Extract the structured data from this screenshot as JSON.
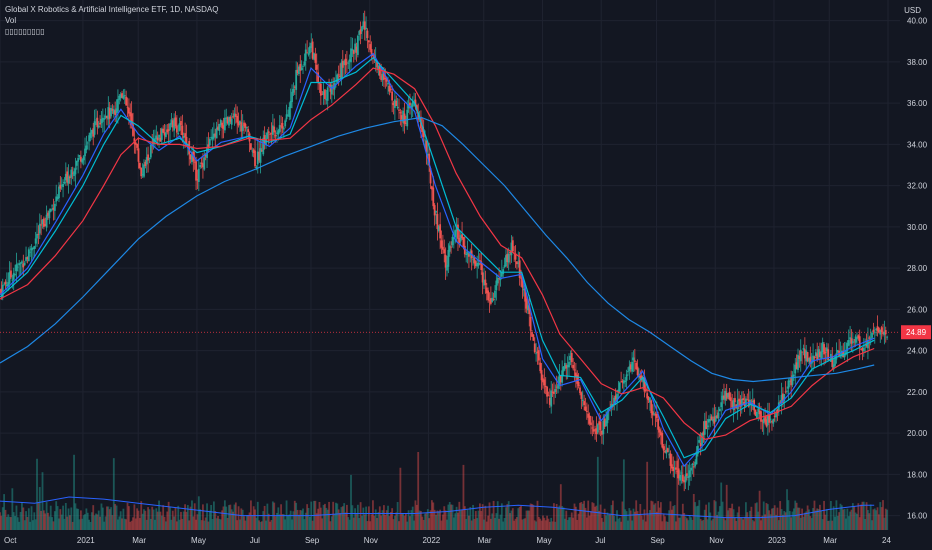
{
  "header": {
    "title": "Global X Robotics & Artificial Intelligence ETF, 1D, NASDAQ",
    "volume_label": "Vol",
    "indicator_placeholder": "▯▯▯▯▯▯▯▯▯"
  },
  "price_scale": {
    "currency": "USD"
  },
  "colors": {
    "background": "#131722",
    "grid": "#1f2330",
    "text": "#d1d4dc",
    "up": "#26a69a",
    "down": "#ef5350",
    "ma_fast": "#2962ff",
    "ma_mid": "#00bcd4",
    "ma_slow_red": "#f23645",
    "ma_long": "#1e88e5",
    "last_price": "#f23645"
  },
  "chart_data": {
    "type": "line",
    "title": "Global X Robotics & Artificial Intelligence ETF, 1D, NASDAQ",
    "xlabel": "",
    "ylabel": "",
    "ylim": [
      15.3,
      41.0
    ],
    "y_ticks": [
      16.0,
      18.0,
      20.0,
      22.0,
      24.0,
      26.0,
      28.0,
      30.0,
      32.0,
      34.0,
      36.0,
      38.0,
      40.0
    ],
    "x_range": [
      2020.76,
      2023.33
    ],
    "x_ticks": [
      {
        "t": 2020.76,
        "label": "Oct"
      },
      {
        "t": 2021.0,
        "label": "2021"
      },
      {
        "t": 2021.16,
        "label": "Mar"
      },
      {
        "t": 2021.33,
        "label": "May"
      },
      {
        "t": 2021.5,
        "label": "Jul"
      },
      {
        "t": 2021.66,
        "label": "Sep"
      },
      {
        "t": 2021.83,
        "label": "Nov"
      },
      {
        "t": 2022.0,
        "label": "2022"
      },
      {
        "t": 2022.16,
        "label": "Mar"
      },
      {
        "t": 2022.33,
        "label": "May"
      },
      {
        "t": 2022.5,
        "label": "Jul"
      },
      {
        "t": 2022.66,
        "label": "Sep"
      },
      {
        "t": 2022.83,
        "label": "Nov"
      },
      {
        "t": 2023.0,
        "label": "2023"
      },
      {
        "t": 2023.16,
        "label": "Mar"
      },
      {
        "t": 2023.33,
        "label": "24"
      }
    ],
    "last_price": 24.89,
    "price": [
      [
        2020.76,
        26.9
      ],
      [
        2020.8,
        27.8
      ],
      [
        2020.84,
        28.6
      ],
      [
        2020.88,
        30.0
      ],
      [
        2020.92,
        31.3
      ],
      [
        2020.96,
        32.6
      ],
      [
        2021.0,
        33.6
      ],
      [
        2021.03,
        34.7
      ],
      [
        2021.06,
        35.6
      ],
      [
        2021.09,
        35.4
      ],
      [
        2021.11,
        36.7
      ],
      [
        2021.13,
        35.6
      ],
      [
        2021.15,
        34.2
      ],
      [
        2021.17,
        32.5
      ],
      [
        2021.2,
        33.9
      ],
      [
        2021.23,
        34.5
      ],
      [
        2021.26,
        35.0
      ],
      [
        2021.29,
        34.6
      ],
      [
        2021.31,
        33.6
      ],
      [
        2021.33,
        32.4
      ],
      [
        2021.36,
        33.8
      ],
      [
        2021.4,
        34.9
      ],
      [
        2021.44,
        35.2
      ],
      [
        2021.48,
        34.5
      ],
      [
        2021.5,
        33.1
      ],
      [
        2021.53,
        34.4
      ],
      [
        2021.56,
        34.7
      ],
      [
        2021.59,
        35.2
      ],
      [
        2021.62,
        37.5
      ],
      [
        2021.66,
        38.9
      ],
      [
        2021.69,
        36.2
      ],
      [
        2021.72,
        36.8
      ],
      [
        2021.76,
        38.1
      ],
      [
        2021.79,
        38.6
      ],
      [
        2021.81,
        39.9
      ],
      [
        2021.84,
        38.3
      ],
      [
        2021.87,
        37.1
      ],
      [
        2021.9,
        36.2
      ],
      [
        2021.93,
        35.2
      ],
      [
        2021.96,
        36.1
      ],
      [
        2021.99,
        34.2
      ],
      [
        2022.02,
        30.6
      ],
      [
        2022.05,
        28.3
      ],
      [
        2022.08,
        29.7
      ],
      [
        2022.11,
        28.8
      ],
      [
        2022.15,
        28.0
      ],
      [
        2022.18,
        26.3
      ],
      [
        2022.21,
        27.8
      ],
      [
        2022.24,
        29.0
      ],
      [
        2022.27,
        27.5
      ],
      [
        2022.3,
        24.8
      ],
      [
        2022.33,
        22.4
      ],
      [
        2022.35,
        21.6
      ],
      [
        2022.38,
        22.6
      ],
      [
        2022.41,
        23.9
      ],
      [
        2022.44,
        21.8
      ],
      [
        2022.47,
        20.4
      ],
      [
        2022.5,
        20.1
      ],
      [
        2022.53,
        21.4
      ],
      [
        2022.56,
        22.4
      ],
      [
        2022.59,
        23.5
      ],
      [
        2022.62,
        22.6
      ],
      [
        2022.65,
        21.0
      ],
      [
        2022.68,
        19.4
      ],
      [
        2022.71,
        18.3
      ],
      [
        2022.74,
        17.8
      ],
      [
        2022.77,
        18.7
      ],
      [
        2022.8,
        20.3
      ],
      [
        2022.83,
        20.8
      ],
      [
        2022.86,
        21.8
      ],
      [
        2022.89,
        21.4
      ],
      [
        2022.93,
        21.6
      ],
      [
        2022.96,
        20.7
      ],
      [
        2022.99,
        20.6
      ],
      [
        2023.02,
        21.6
      ],
      [
        2023.05,
        22.6
      ],
      [
        2023.08,
        24.0
      ],
      [
        2023.11,
        23.4
      ],
      [
        2023.14,
        24.2
      ],
      [
        2023.17,
        23.5
      ],
      [
        2023.2,
        23.9
      ],
      [
        2023.23,
        24.6
      ],
      [
        2023.26,
        24.2
      ],
      [
        2023.29,
        24.89
      ]
    ],
    "series": [
      {
        "points": [
          [
            2020.76,
            26.7
          ],
          [
            2020.84,
            28.0
          ],
          [
            2020.92,
            30.2
          ],
          [
            2021.0,
            32.5
          ],
          [
            2021.06,
            34.5
          ],
          [
            2021.11,
            35.7
          ],
          [
            2021.16,
            34.5
          ],
          [
            2021.22,
            33.7
          ],
          [
            2021.28,
            34.4
          ],
          [
            2021.33,
            33.2
          ],
          [
            2021.4,
            34.1
          ],
          [
            2021.48,
            34.4
          ],
          [
            2021.54,
            33.9
          ],
          [
            2021.6,
            34.8
          ],
          [
            2021.66,
            37.7
          ],
          [
            2021.72,
            36.7
          ],
          [
            2021.79,
            37.8
          ],
          [
            2021.84,
            38.4
          ],
          [
            2021.9,
            36.6
          ],
          [
            2021.96,
            35.6
          ],
          [
            2022.02,
            32.0
          ],
          [
            2022.08,
            29.3
          ],
          [
            2022.15,
            28.3
          ],
          [
            2022.21,
            27.5
          ],
          [
            2022.27,
            27.7
          ],
          [
            2022.33,
            23.6
          ],
          [
            2022.38,
            22.3
          ],
          [
            2022.44,
            22.6
          ],
          [
            2022.5,
            20.6
          ],
          [
            2022.56,
            21.9
          ],
          [
            2022.62,
            23.0
          ],
          [
            2022.68,
            20.2
          ],
          [
            2022.74,
            18.4
          ],
          [
            2022.8,
            19.5
          ],
          [
            2022.86,
            21.1
          ],
          [
            2022.93,
            21.5
          ],
          [
            2022.99,
            20.9
          ],
          [
            2023.05,
            22.0
          ],
          [
            2023.11,
            23.5
          ],
          [
            2023.17,
            23.7
          ],
          [
            2023.23,
            24.2
          ],
          [
            2023.29,
            24.6
          ]
        ]
      },
      {
        "points": [
          [
            2020.76,
            26.6
          ],
          [
            2020.84,
            27.8
          ],
          [
            2020.92,
            29.8
          ],
          [
            2021.0,
            32.0
          ],
          [
            2021.06,
            34.0
          ],
          [
            2021.11,
            35.4
          ],
          [
            2021.16,
            34.9
          ],
          [
            2021.22,
            34.0
          ],
          [
            2021.28,
            34.3
          ],
          [
            2021.33,
            33.6
          ],
          [
            2021.4,
            33.9
          ],
          [
            2021.48,
            34.4
          ],
          [
            2021.54,
            34.1
          ],
          [
            2021.6,
            34.5
          ],
          [
            2021.66,
            37.0
          ],
          [
            2021.72,
            37.0
          ],
          [
            2021.79,
            37.5
          ],
          [
            2021.84,
            38.2
          ],
          [
            2021.9,
            37.1
          ],
          [
            2021.96,
            36.0
          ],
          [
            2022.02,
            33.0
          ],
          [
            2022.08,
            30.0
          ],
          [
            2022.15,
            28.8
          ],
          [
            2022.21,
            27.8
          ],
          [
            2022.27,
            27.8
          ],
          [
            2022.33,
            24.5
          ],
          [
            2022.38,
            22.8
          ],
          [
            2022.44,
            22.7
          ],
          [
            2022.5,
            21.0
          ],
          [
            2022.56,
            21.6
          ],
          [
            2022.62,
            22.7
          ],
          [
            2022.68,
            20.8
          ],
          [
            2022.74,
            18.8
          ],
          [
            2022.8,
            19.2
          ],
          [
            2022.86,
            20.7
          ],
          [
            2022.93,
            21.4
          ],
          [
            2022.99,
            21.0
          ],
          [
            2023.05,
            21.7
          ],
          [
            2023.11,
            23.1
          ],
          [
            2023.17,
            23.6
          ],
          [
            2023.23,
            24.0
          ],
          [
            2023.29,
            24.5
          ]
        ]
      },
      {
        "points": [
          [
            2020.76,
            26.5
          ],
          [
            2020.84,
            27.2
          ],
          [
            2020.92,
            28.6
          ],
          [
            2021.0,
            30.3
          ],
          [
            2021.06,
            32.0
          ],
          [
            2021.11,
            33.5
          ],
          [
            2021.16,
            34.3
          ],
          [
            2021.22,
            34.0
          ],
          [
            2021.28,
            34.0
          ],
          [
            2021.33,
            33.8
          ],
          [
            2021.4,
            33.9
          ],
          [
            2021.48,
            34.3
          ],
          [
            2021.54,
            34.2
          ],
          [
            2021.6,
            34.3
          ],
          [
            2021.66,
            35.2
          ],
          [
            2021.72,
            35.9
          ],
          [
            2021.79,
            36.9
          ],
          [
            2021.84,
            37.7
          ],
          [
            2021.9,
            37.4
          ],
          [
            2021.96,
            36.7
          ],
          [
            2022.02,
            34.9
          ],
          [
            2022.08,
            32.6
          ],
          [
            2022.15,
            30.5
          ],
          [
            2022.21,
            29.1
          ],
          [
            2022.27,
            28.5
          ],
          [
            2022.33,
            26.7
          ],
          [
            2022.38,
            24.8
          ],
          [
            2022.44,
            23.6
          ],
          [
            2022.5,
            22.4
          ],
          [
            2022.56,
            21.9
          ],
          [
            2022.62,
            22.2
          ],
          [
            2022.68,
            21.7
          ],
          [
            2022.74,
            20.5
          ],
          [
            2022.8,
            19.7
          ],
          [
            2022.86,
            19.9
          ],
          [
            2022.93,
            20.6
          ],
          [
            2022.99,
            20.9
          ],
          [
            2023.05,
            21.3
          ],
          [
            2023.11,
            22.3
          ],
          [
            2023.17,
            23.1
          ],
          [
            2023.23,
            23.7
          ],
          [
            2023.29,
            24.1
          ]
        ]
      },
      {
        "points": [
          [
            2020.76,
            23.4
          ],
          [
            2020.84,
            24.2
          ],
          [
            2020.92,
            25.3
          ],
          [
            2021.0,
            26.6
          ],
          [
            2021.08,
            28.0
          ],
          [
            2021.16,
            29.4
          ],
          [
            2021.24,
            30.5
          ],
          [
            2021.33,
            31.5
          ],
          [
            2021.41,
            32.2
          ],
          [
            2021.5,
            32.8
          ],
          [
            2021.58,
            33.4
          ],
          [
            2021.66,
            33.9
          ],
          [
            2021.74,
            34.4
          ],
          [
            2021.82,
            34.8
          ],
          [
            2021.9,
            35.1
          ],
          [
            2021.98,
            35.3
          ],
          [
            2022.04,
            34.9
          ],
          [
            2022.1,
            34.0
          ],
          [
            2022.16,
            33.0
          ],
          [
            2022.22,
            32.0
          ],
          [
            2022.28,
            30.8
          ],
          [
            2022.34,
            29.6
          ],
          [
            2022.4,
            28.5
          ],
          [
            2022.46,
            27.3
          ],
          [
            2022.52,
            26.3
          ],
          [
            2022.58,
            25.5
          ],
          [
            2022.64,
            24.9
          ],
          [
            2022.7,
            24.2
          ],
          [
            2022.76,
            23.5
          ],
          [
            2022.82,
            22.9
          ],
          [
            2022.88,
            22.6
          ],
          [
            2022.94,
            22.5
          ],
          [
            2023.0,
            22.6
          ],
          [
            2023.06,
            22.7
          ],
          [
            2023.12,
            22.8
          ],
          [
            2023.18,
            22.9
          ],
          [
            2023.24,
            23.1
          ],
          [
            2023.29,
            23.3
          ]
        ]
      }
    ],
    "volume_ma": [
      [
        2020.76,
        16.7
      ],
      [
        2020.86,
        16.6
      ],
      [
        2020.96,
        16.9
      ],
      [
        2021.06,
        16.8
      ],
      [
        2021.16,
        16.6
      ],
      [
        2021.26,
        16.4
      ],
      [
        2021.36,
        16.2
      ],
      [
        2021.46,
        16.0
      ],
      [
        2021.56,
        16.0
      ],
      [
        2021.66,
        16.0
      ],
      [
        2021.76,
        16.1
      ],
      [
        2021.86,
        16.1
      ],
      [
        2021.96,
        16.1
      ],
      [
        2022.06,
        16.2
      ],
      [
        2022.16,
        16.4
      ],
      [
        2022.26,
        16.5
      ],
      [
        2022.36,
        16.4
      ],
      [
        2022.46,
        16.2
      ],
      [
        2022.56,
        16.0
      ],
      [
        2022.66,
        16.1
      ],
      [
        2022.76,
        16.0
      ],
      [
        2022.86,
        15.9
      ],
      [
        2022.96,
        15.9
      ],
      [
        2023.06,
        16.0
      ],
      [
        2023.16,
        16.3
      ],
      [
        2023.26,
        16.5
      ],
      [
        2023.29,
        16.5
      ]
    ]
  }
}
